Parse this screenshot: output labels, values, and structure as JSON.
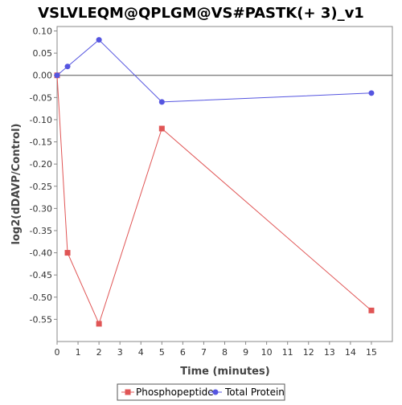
{
  "chart_data": {
    "type": "line",
    "title": "VSLVLEQM@QPLGM@VS#PASTK(+ 3)_v1",
    "xlabel": "Time (minutes)",
    "ylabel": "log2(dDAVP/Control)",
    "xlim": [
      0,
      16
    ],
    "ylim": [
      -0.6,
      0.11
    ],
    "xticks": [
      0,
      1,
      2,
      3,
      4,
      5,
      6,
      7,
      8,
      9,
      10,
      11,
      12,
      13,
      14,
      15
    ],
    "yticks": [
      0.1,
      0.05,
      0.0,
      -0.05,
      -0.1,
      -0.15,
      -0.2,
      -0.25,
      -0.3,
      -0.35,
      -0.4,
      -0.45,
      -0.5,
      -0.55
    ],
    "grid": false,
    "zero_line": true,
    "legend_position": "bottom",
    "series": [
      {
        "name": "Phosphopeptide",
        "color": "#e05555",
        "marker": "square",
        "x": [
          0,
          0.5,
          2,
          5,
          15
        ],
        "y": [
          0.0,
          -0.4,
          -0.56,
          -0.12,
          -0.53
        ]
      },
      {
        "name": "Total Protein",
        "color": "#5555e0",
        "marker": "circle",
        "x": [
          0,
          0.5,
          2,
          5,
          15
        ],
        "y": [
          0.0,
          0.02,
          0.08,
          -0.06,
          -0.04
        ]
      }
    ]
  }
}
